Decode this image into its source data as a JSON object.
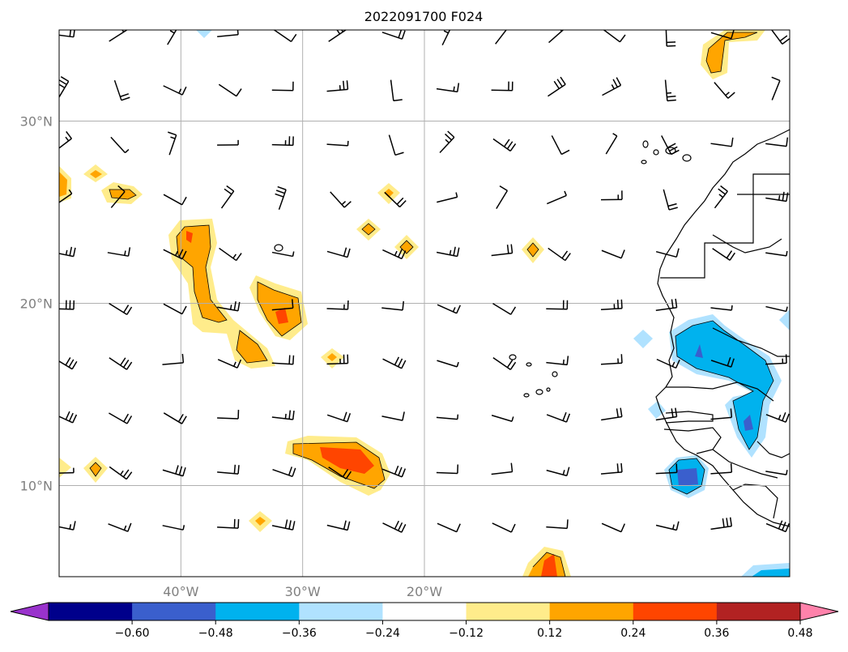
{
  "title": "2022091700 F024",
  "map": {
    "lon_range": [
      -50,
      10
    ],
    "lat_range": [
      5,
      35
    ],
    "x_ticks": [
      {
        "lon": -40,
        "label": "40°W"
      },
      {
        "lon": -30,
        "label": "30°W"
      },
      {
        "lon": -20,
        "label": "20°W"
      }
    ],
    "y_ticks": [
      {
        "lat": 30,
        "label": "30°N"
      },
      {
        "lat": 20,
        "label": "20°N"
      },
      {
        "lat": 10,
        "label": "10°N"
      }
    ],
    "grid": true,
    "gridline_lons": [
      -40,
      -30,
      -20
    ],
    "gridline_lats": [
      30,
      20,
      10
    ]
  },
  "colorbar": {
    "extend": "both",
    "levels": [
      -0.6,
      -0.48,
      -0.36,
      -0.24,
      -0.12,
      0.12,
      0.24,
      0.36,
      0.48,
      0.6
    ],
    "tick_labels": [
      "−0.60",
      "−0.48",
      "−0.36",
      "−0.24",
      "−0.12",
      "0.12",
      "0.24",
      "0.36",
      "0.48",
      "0.60"
    ],
    "colors": [
      "#9932CC",
      "#00008B",
      "#3A5FCD",
      "#00B2EE",
      "#B0E2FF",
      "#FFFFFF",
      "#FFEC8B",
      "#FFA500",
      "#FF4500",
      "#B22222",
      "#FF82AB"
    ]
  },
  "contour_regions": [
    {
      "sign": "positive",
      "peak": 0.36,
      "lon": -42.5,
      "lat": 22.5
    },
    {
      "sign": "positive",
      "peak": 0.36,
      "lon": -37.5,
      "lat": 20
    },
    {
      "sign": "positive",
      "peak": 0.24,
      "lon": -41,
      "lat": 17.5
    },
    {
      "sign": "positive",
      "peak": 0.36,
      "lon": -34,
      "lat": 11
    },
    {
      "sign": "positive",
      "peak": 0.36,
      "lon": -24,
      "lat": 5.5
    },
    {
      "sign": "positive",
      "peak": 0.24,
      "lon": -14,
      "lat": 33
    },
    {
      "sign": "positive",
      "peak": 0.24,
      "lon": -48.5,
      "lat": 26
    },
    {
      "sign": "positive",
      "peak": 0.24,
      "lon": -24,
      "lat": 23
    },
    {
      "sign": "negative",
      "peak": -0.48,
      "lon": -13,
      "lat": 10.5
    },
    {
      "sign": "negative",
      "peak": -0.36,
      "lon": -11,
      "lat": 17
    },
    {
      "sign": "negative",
      "peak": -0.36,
      "lon": -9,
      "lat": 13
    }
  ],
  "wind_barbs": {
    "spacing_lon": 3,
    "spacing_lat": 3,
    "note_visible": "black wind barbs on a regular grid"
  }
}
